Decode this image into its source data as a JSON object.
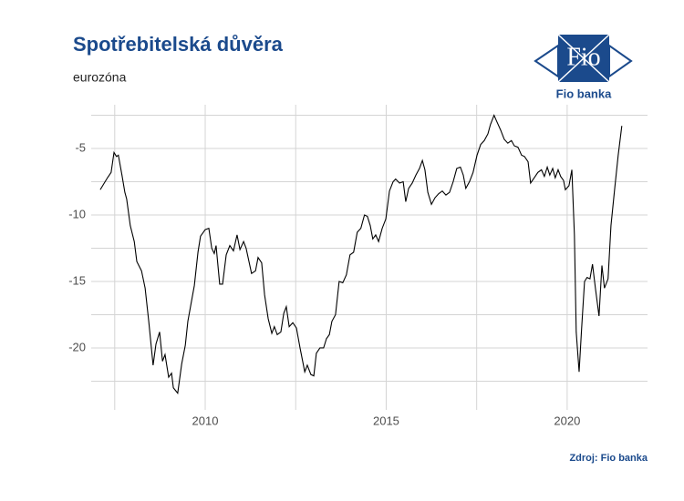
{
  "chart_data": {
    "type": "line",
    "title": "Spotřebitelská důvěra",
    "subtitle": "eurozóna",
    "source": "Zdroj: Fio banka",
    "logo": {
      "mark": "Fio",
      "name": "Fio banka"
    },
    "xlim": [
      2006.85,
      2022.22
    ],
    "ylim": [
      -24.66,
      -1.71
    ],
    "xticks": [
      2010,
      2015,
      2020
    ],
    "xticks_minor": [
      2007.5,
      2012.5,
      2017.5
    ],
    "yticks": [
      -20,
      -15,
      -10,
      -5
    ],
    "yticks_minor": [
      -22.5,
      -17.5,
      -12.5,
      -7.5,
      -2.5
    ],
    "grid": true,
    "series": [
      {
        "color": "#000000",
        "x": [
          2007.1,
          2007.3,
          2007.4,
          2007.48,
          2007.55,
          2007.6,
          2007.7,
          2007.78,
          2007.83,
          2007.93,
          2008.04,
          2008.11,
          2008.24,
          2008.34,
          2008.44,
          2008.56,
          2008.64,
          2008.74,
          2008.82,
          2008.89,
          2008.99,
          2009.07,
          2009.12,
          2009.24,
          2009.35,
          2009.45,
          2009.52,
          2009.62,
          2009.7,
          2009.8,
          2009.87,
          2010.0,
          2010.1,
          2010.18,
          2010.25,
          2010.3,
          2010.4,
          2010.48,
          2010.58,
          2010.68,
          2010.78,
          2010.88,
          2010.96,
          2011.06,
          2011.13,
          2011.28,
          2011.39,
          2011.46,
          2011.56,
          2011.64,
          2011.74,
          2011.84,
          2011.91,
          2011.99,
          2012.09,
          2012.17,
          2012.24,
          2012.32,
          2012.42,
          2012.52,
          2012.62,
          2012.75,
          2012.82,
          2012.92,
          2013.0,
          2013.07,
          2013.17,
          2013.27,
          2013.35,
          2013.43,
          2013.5,
          2013.6,
          2013.7,
          2013.8,
          2013.9,
          2014.0,
          2014.1,
          2014.2,
          2014.3,
          2014.4,
          2014.48,
          2014.56,
          2014.63,
          2014.71,
          2014.79,
          2014.89,
          2014.99,
          2015.09,
          2015.19,
          2015.26,
          2015.37,
          2015.47,
          2015.54,
          2015.62,
          2015.72,
          2015.82,
          2015.92,
          2016.0,
          2016.07,
          2016.15,
          2016.25,
          2016.35,
          2016.45,
          2016.55,
          2016.65,
          2016.75,
          2016.85,
          2016.95,
          2017.05,
          2017.13,
          2017.2,
          2017.3,
          2017.4,
          2017.51,
          2017.61,
          2017.71,
          2017.81,
          2017.88,
          2017.98,
          2018.06,
          2018.16,
          2018.26,
          2018.36,
          2018.46,
          2018.54,
          2018.64,
          2018.74,
          2018.82,
          2018.92,
          2018.99,
          2019.09,
          2019.19,
          2019.29,
          2019.37,
          2019.45,
          2019.52,
          2019.6,
          2019.67,
          2019.75,
          2019.82,
          2019.9,
          2019.95,
          2020.05,
          2020.13,
          2020.2,
          2020.25,
          2020.33,
          2020.4,
          2020.48,
          2020.55,
          2020.63,
          2020.7,
          2020.78,
          2020.88,
          2020.96,
          2021.03,
          2021.13,
          2021.21,
          2021.31,
          2021.41,
          2021.51
        ],
        "values": [
          -8.1,
          -7.2,
          -6.8,
          -5.3,
          -5.6,
          -5.5,
          -7,
          -8.3,
          -8.8,
          -10.8,
          -12,
          -13.5,
          -14.2,
          -15.5,
          -18,
          -21.3,
          -19.7,
          -18.8,
          -21,
          -20.5,
          -22.2,
          -21.9,
          -23,
          -23.4,
          -21.2,
          -19.8,
          -18,
          -16.5,
          -15.3,
          -12.8,
          -11.6,
          -11.1,
          -11,
          -12.5,
          -12.9,
          -12.3,
          -15.2,
          -15.2,
          -13,
          -12.3,
          -12.7,
          -11.5,
          -12.6,
          -12,
          -12.5,
          -14.4,
          -14.2,
          -13.2,
          -13.6,
          -16,
          -17.8,
          -18.9,
          -18.4,
          -19,
          -18.8,
          -17.4,
          -16.9,
          -18.4,
          -18.1,
          -18.5,
          -20,
          -21.8,
          -21.3,
          -22,
          -22.1,
          -20.4,
          -20,
          -20,
          -19.3,
          -19,
          -18,
          -17.5,
          -15,
          -15.1,
          -14.5,
          -13,
          -12.8,
          -11.3,
          -11,
          -10,
          -10.1,
          -10.8,
          -11.8,
          -11.5,
          -12,
          -11,
          -10.3,
          -8.2,
          -7.5,
          -7.3,
          -7.6,
          -7.5,
          -9,
          -8,
          -7.6,
          -7,
          -6.5,
          -5.9,
          -6.6,
          -8.3,
          -9.2,
          -8.7,
          -8.4,
          -8.2,
          -8.5,
          -8.3,
          -7.5,
          -6.5,
          -6.4,
          -7,
          -8,
          -7.5,
          -6.8,
          -5.5,
          -4.7,
          -4.4,
          -3.9,
          -3.2,
          -2.5,
          -3,
          -3.6,
          -4.3,
          -4.6,
          -4.4,
          -4.8,
          -4.9,
          -5.5,
          -5.6,
          -6,
          -7.6,
          -7.2,
          -6.8,
          -6.6,
          -7.1,
          -6.4,
          -7,
          -6.5,
          -7.2,
          -6.6,
          -7.1,
          -7.4,
          -8.1,
          -7.8,
          -6.6,
          -11.5,
          -18.8,
          -21.8,
          -18.5,
          -15,
          -14.7,
          -14.8,
          -13.7,
          -15.5,
          -17.6,
          -13.8,
          -15.5,
          -14.8,
          -10.8,
          -8.1,
          -5.5,
          -3.3
        ]
      }
    ]
  }
}
